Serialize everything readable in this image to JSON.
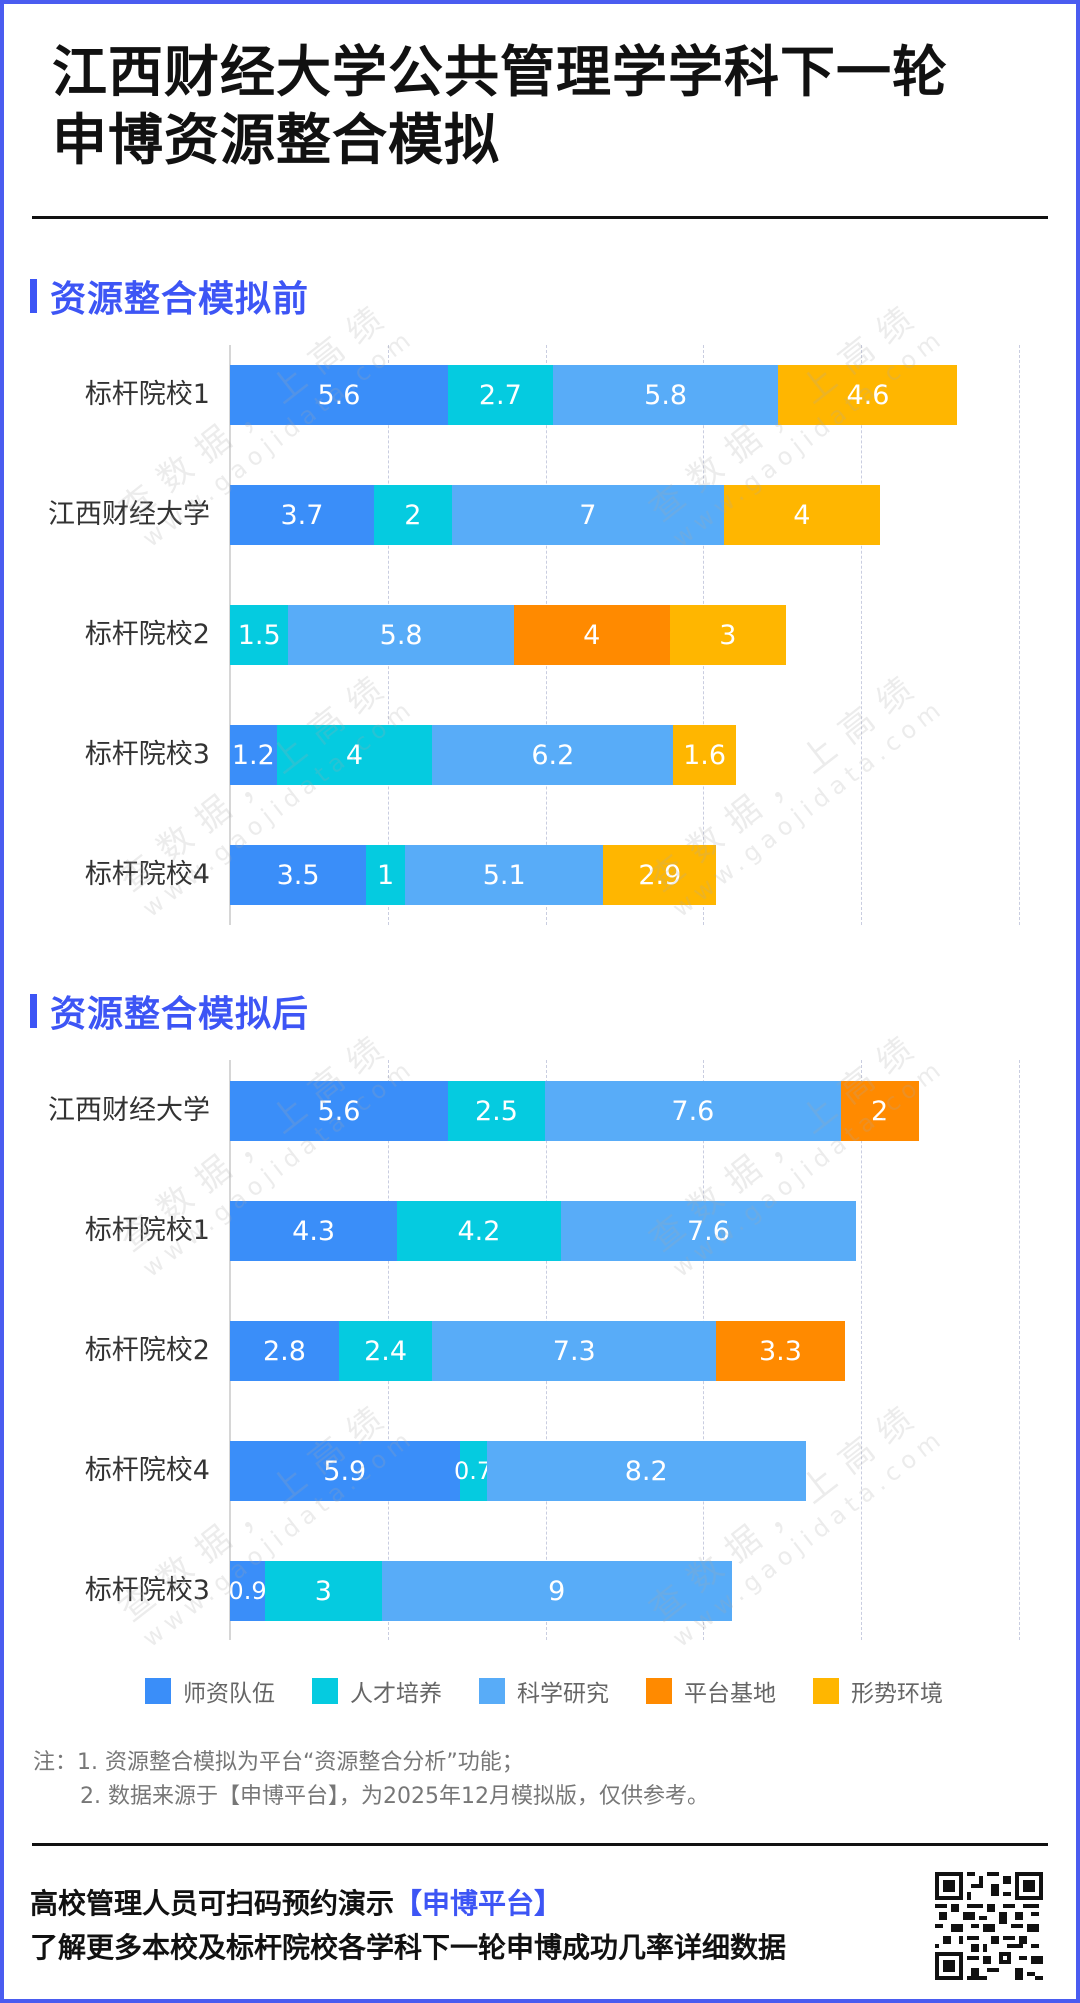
{
  "title": {
    "line1": "江西财经大学公共管理学学科下一轮",
    "line2": "申博资源整合模拟"
  },
  "sections": [
    {
      "label": "资源整合模拟前"
    },
    {
      "label": "资源整合模拟后"
    }
  ],
  "colors": {
    "师资队伍": "#3a8ef9",
    "人才培养": "#05cbe0",
    "科学研究": "#58acf8",
    "平台基地": "#ff8a00",
    "形势环境": "#ffb600",
    "accent": "#3d55f5",
    "frame": "#4a5cf0"
  },
  "legend": [
    {
      "label": "师资队伍",
      "color": "#3a8ef9"
    },
    {
      "label": "人才培养",
      "color": "#05cbe0"
    },
    {
      "label": "科学研究",
      "color": "#58acf8"
    },
    {
      "label": "平台基地",
      "color": "#ff8a00"
    },
    {
      "label": "形势环境",
      "color": "#ffb600"
    }
  ],
  "chart_data": [
    {
      "type": "bar",
      "orientation": "horizontal",
      "stacked": true,
      "title": "资源整合模拟前",
      "categories": [
        "标杆院校1",
        "江西财经大学",
        "标杆院校2",
        "标杆院校3",
        "标杆院校4"
      ],
      "series": [
        {
          "name": "师资队伍",
          "values": [
            5.6,
            3.7,
            0,
            1.2,
            3.5
          ]
        },
        {
          "name": "人才培养",
          "values": [
            2.7,
            2,
            1.5,
            4,
            1
          ]
        },
        {
          "name": "科学研究",
          "values": [
            5.8,
            7,
            5.8,
            6.2,
            5.1
          ]
        },
        {
          "name": "平台基地",
          "values": [
            0,
            0,
            4,
            0,
            0
          ]
        },
        {
          "name": "形势环境",
          "values": [
            4.6,
            4,
            3,
            1.6,
            2.9
          ]
        }
      ],
      "xlabel": "",
      "ylabel": "",
      "xlim": [
        0,
        20
      ],
      "grid": true,
      "data_labels": true,
      "legend_position": "bottom"
    },
    {
      "type": "bar",
      "orientation": "horizontal",
      "stacked": true,
      "title": "资源整合模拟后",
      "categories": [
        "江西财经大学",
        "标杆院校1",
        "标杆院校2",
        "标杆院校4",
        "标杆院校3"
      ],
      "series": [
        {
          "name": "师资队伍",
          "values": [
            5.6,
            4.3,
            2.8,
            5.9,
            0.9
          ]
        },
        {
          "name": "人才培养",
          "values": [
            2.5,
            4.2,
            2.4,
            0.7,
            3
          ]
        },
        {
          "name": "科学研究",
          "values": [
            7.6,
            7.6,
            7.3,
            8.2,
            9
          ]
        },
        {
          "name": "平台基地",
          "values": [
            2,
            0,
            3.3,
            0,
            0
          ]
        },
        {
          "name": "形势环境",
          "values": [
            0,
            0,
            0,
            0,
            0
          ]
        }
      ],
      "xlabel": "",
      "ylabel": "",
      "xlim": [
        0,
        20
      ],
      "grid": true,
      "data_labels": true,
      "legend_position": "bottom"
    }
  ],
  "notes": {
    "prefix": "注：",
    "line1": "1. 资源整合模拟为平台“资源整合分析”功能；",
    "line2": "2. 数据来源于【申博平台】，为2025年12月模拟版，仅供参考。"
  },
  "footer": {
    "line1_text": "高校管理人员可扫码预约演示",
    "line1_highlight": "【申博平台】",
    "line2": "了解更多本校及标杆院校各学科下一轮申博成功几率详细数据"
  },
  "qr_icon": "qr-code-icon",
  "watermark": {
    "text": "查数据，上高绩",
    "url": "www.gaojidata.com"
  }
}
